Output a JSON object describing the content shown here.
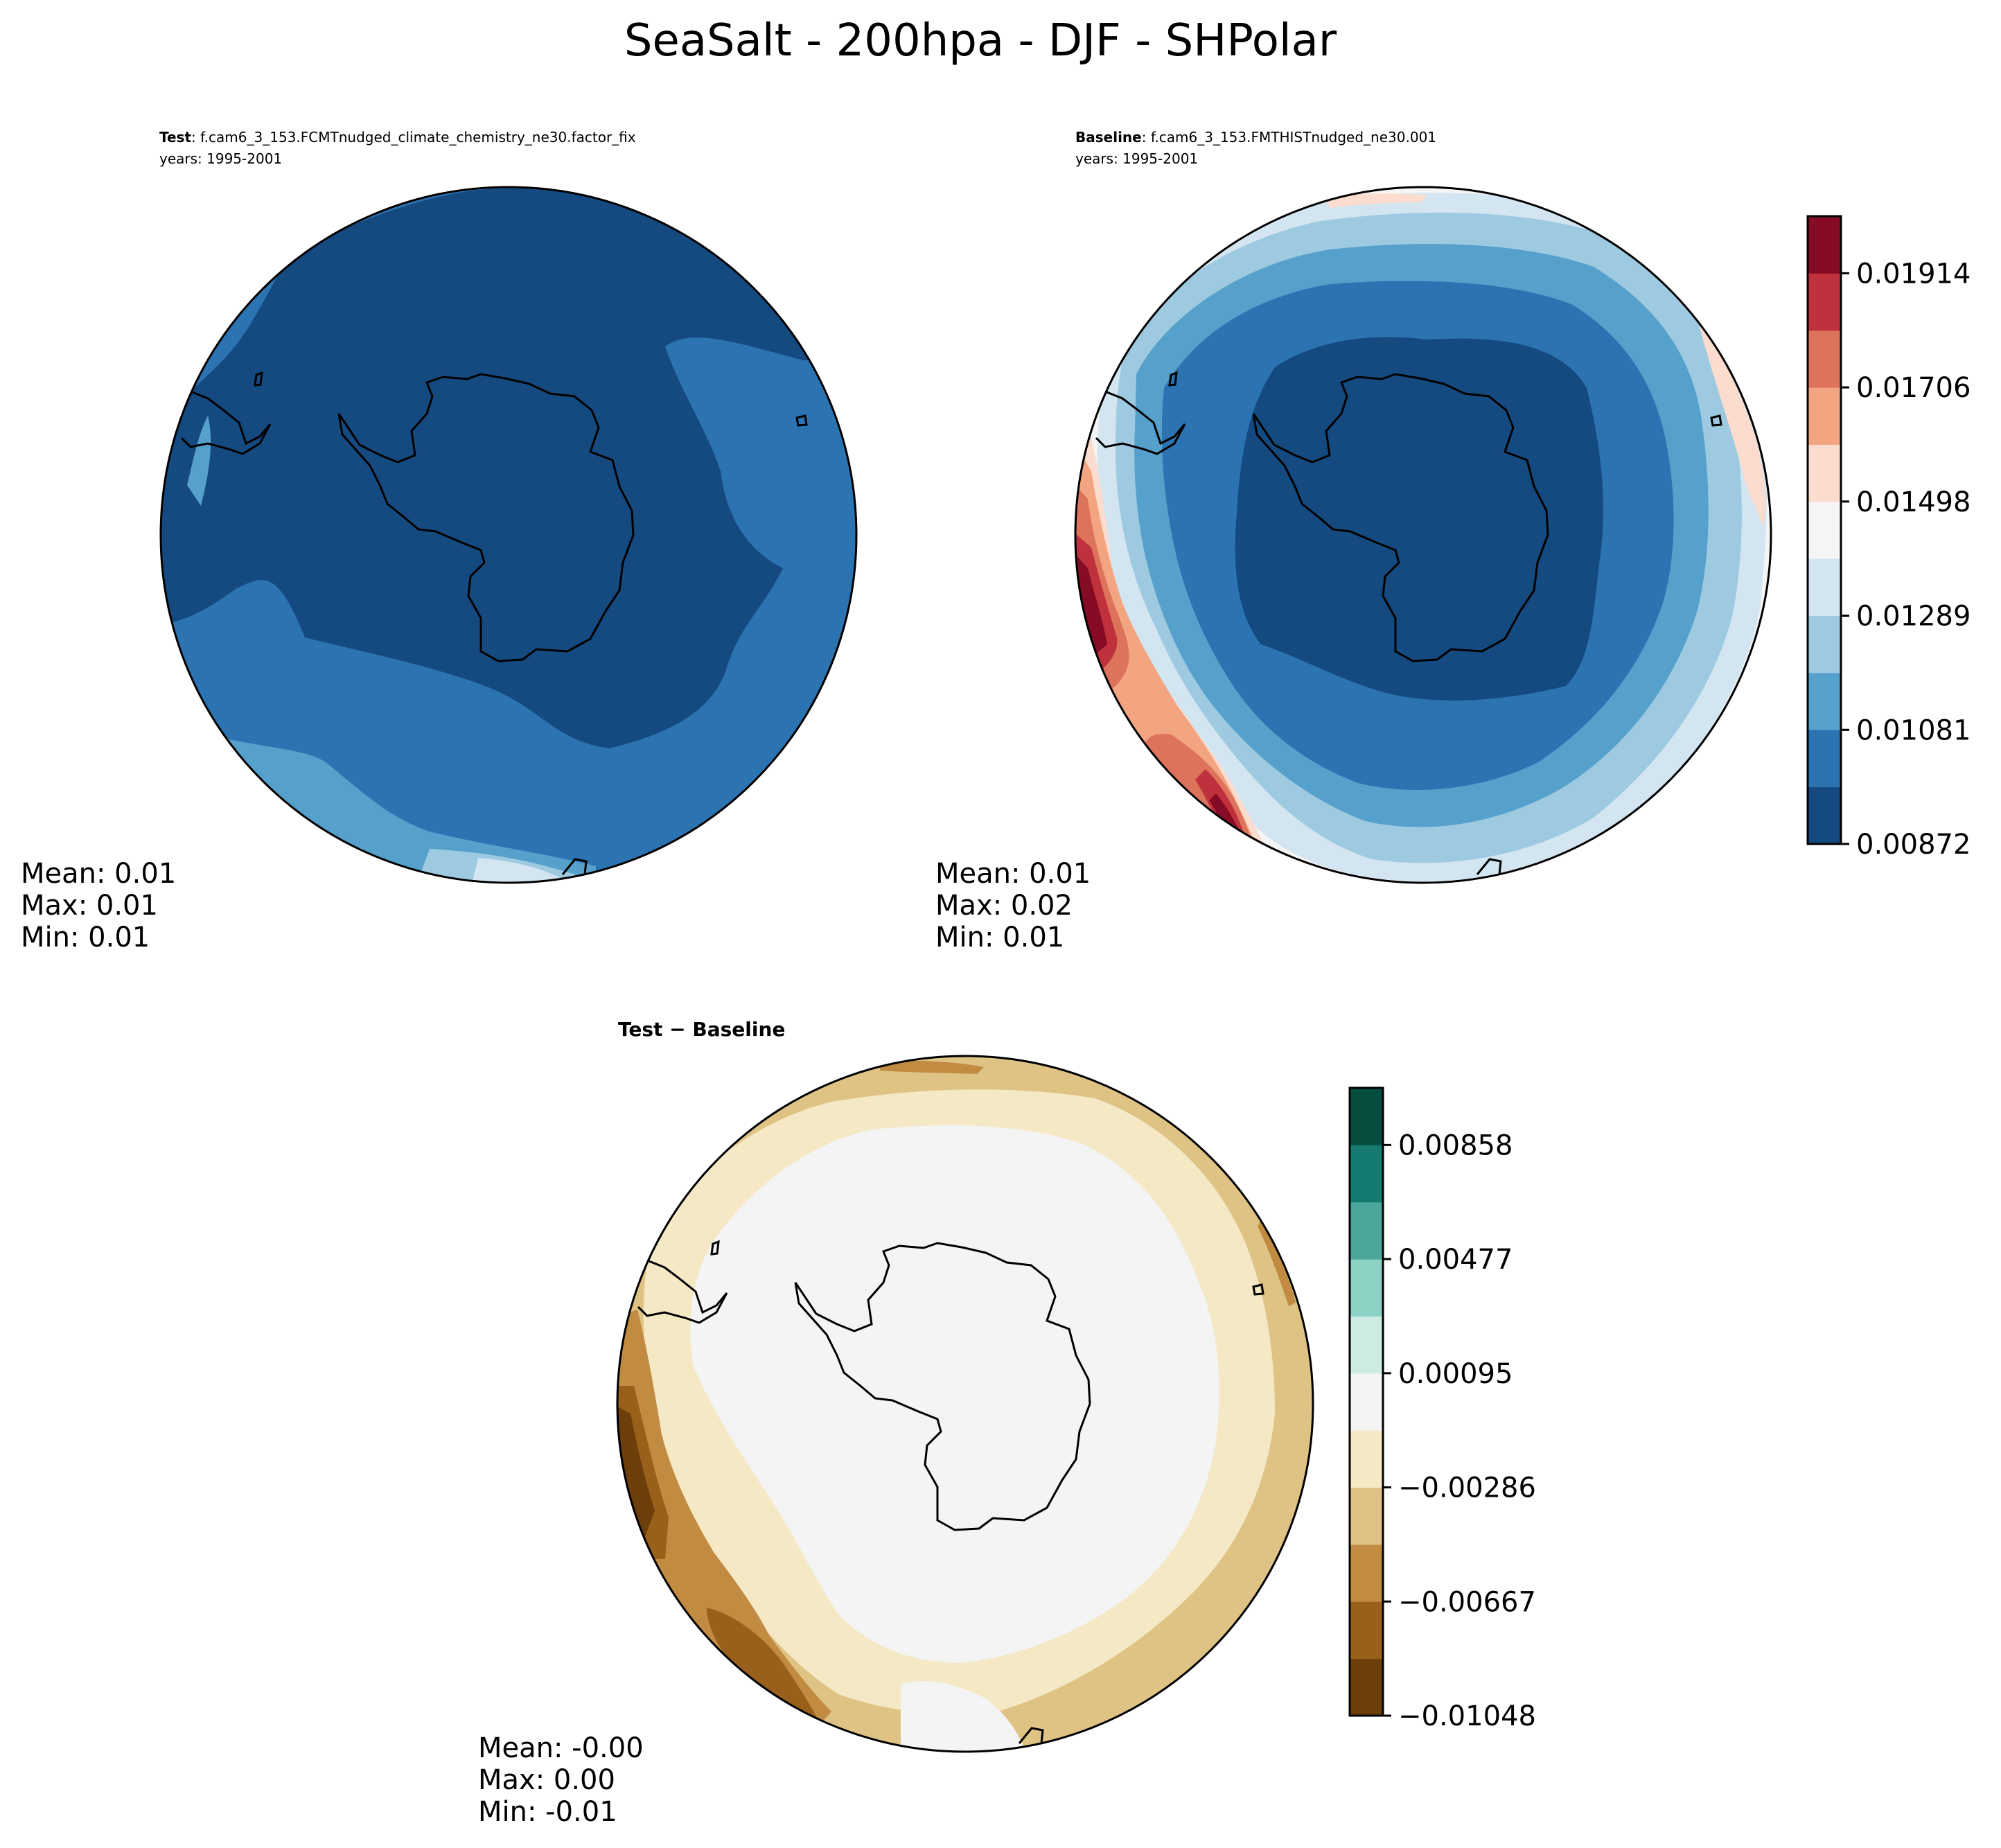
{
  "figure": {
    "title": "SeaSalt - 200hpa - DJF - SHPolar"
  },
  "panels": [
    {
      "id": "test",
      "header_bold": "Test",
      "header_text": ": f.cam6_3_153.FCMTnudged_climate_chemistry_ne30.factor_fix",
      "years": "years: 1995-2001",
      "stats": {
        "mean": "Mean:  0.01",
        "max": "Max:  0.01",
        "min": "Min:  0.01"
      }
    },
    {
      "id": "baseline",
      "header_bold": "Baseline",
      "header_text": ": f.cam6_3_153.FMTHISTnudged_ne30.001",
      "years": "years: 1995-2001",
      "stats": {
        "mean": "Mean:  0.01",
        "max": "Max:  0.02",
        "min": "Min:  0.01"
      }
    },
    {
      "id": "difference",
      "header_bold": "Test − Baseline",
      "header_text": "",
      "years": "",
      "stats": {
        "mean": "Mean: -0.00",
        "max": "Max:  0.00",
        "min": "Min: -0.01"
      }
    }
  ],
  "colorbars": {
    "main": {
      "colormap": "RdBu_r",
      "ticks": [
        "0.00872",
        "0.01081",
        "0.01289",
        "0.01498",
        "0.01706",
        "0.01914"
      ],
      "colors": [
        "#154a80",
        "#2c73b2",
        "#56a0cc",
        "#9ecae1",
        "#d2e5f0",
        "#f5f5f5",
        "#fcdcce",
        "#f3a582",
        "#de735b",
        "#bf313c",
        "#860b24"
      ]
    },
    "diff": {
      "colormap": "BrBG",
      "ticks": [
        "−0.01048",
        "−0.00667",
        "−0.00286",
        "0.00095",
        "0.00477",
        "0.00858"
      ],
      "colors": [
        "#6b3e0a",
        "#98601a",
        "#c18b42",
        "#dfc385",
        "#f4e8c5",
        "#f3f4f3",
        "#cdeae3",
        "#8ed2c6",
        "#4ba598",
        "#157b71",
        "#054d3f"
      ]
    }
  }
}
